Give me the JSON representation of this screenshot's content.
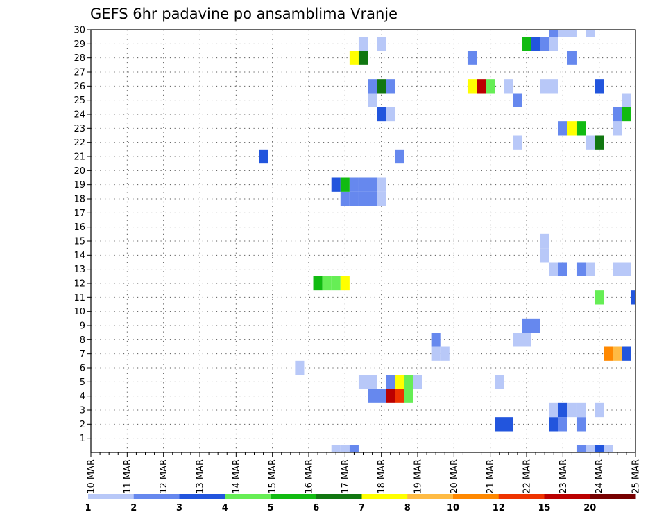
{
  "chart_data": {
    "type": "heatmap",
    "title": "GEFS 6hr padavine po ansamblima Vranje",
    "xlabel": "",
    "ylabel": "",
    "x_tick_labels": [
      "10 MAR",
      "11 MAR",
      "12 MAR",
      "13 MAR",
      "14 MAR",
      "15 MAR",
      "16 MAR",
      "17 MAR",
      "18 MAR",
      "19 MAR",
      "20 MAR",
      "21 MAR",
      "22 MAR",
      "23 MAR",
      "24 MAR",
      "25 MAR"
    ],
    "y_tick_labels": [
      "1",
      "2",
      "3",
      "4",
      "5",
      "6",
      "7",
      "8",
      "9",
      "10",
      "11",
      "12",
      "13",
      "14",
      "15",
      "16",
      "17",
      "18",
      "19",
      "20",
      "21",
      "22",
      "23",
      "24",
      "25",
      "26",
      "27",
      "28",
      "29",
      "30"
    ],
    "xlim_steps": [
      0,
      60
    ],
    "ylim_members": [
      0,
      30
    ],
    "grid": true,
    "legend": {
      "placement": "bottom",
      "thresholds": [
        "1",
        "2",
        "3",
        "4",
        "5",
        "6",
        "7",
        "8",
        "10",
        "12",
        "15",
        "20"
      ],
      "colors": [
        "#b8c8f8",
        "#6688ee",
        "#2255dd",
        "#66ee55",
        "#11bb11",
        "#117711",
        "#ffff00",
        "#ffbb44",
        "#ff8800",
        "#ee3300",
        "#bb0000",
        "#770000"
      ]
    },
    "step_hours": 6,
    "cells_note": "each cell: [time step index (6h, from 10 MAR 00z), ensemble member 0-30, color class 0-11]",
    "cells": [
      [
        27,
        0,
        0
      ],
      [
        28,
        0,
        0
      ],
      [
        29,
        0,
        1
      ],
      [
        54,
        0,
        1
      ],
      [
        55,
        0,
        0
      ],
      [
        56,
        0,
        2
      ],
      [
        57,
        0,
        0
      ],
      [
        45,
        2,
        2
      ],
      [
        46,
        2,
        2
      ],
      [
        51,
        2,
        2
      ],
      [
        52,
        2,
        1
      ],
      [
        54,
        2,
        1
      ],
      [
        51,
        3,
        0
      ],
      [
        52,
        3,
        2
      ],
      [
        53,
        3,
        0
      ],
      [
        54,
        3,
        0
      ],
      [
        56,
        3,
        0
      ],
      [
        31,
        4,
        1
      ],
      [
        32,
        4,
        1
      ],
      [
        33,
        4,
        10
      ],
      [
        34,
        4,
        9
      ],
      [
        35,
        4,
        3
      ],
      [
        30,
        5,
        0
      ],
      [
        31,
        5,
        0
      ],
      [
        33,
        5,
        1
      ],
      [
        34,
        5,
        6
      ],
      [
        35,
        5,
        3
      ],
      [
        36,
        5,
        0
      ],
      [
        45,
        5,
        0
      ],
      [
        23,
        6,
        0
      ],
      [
        38,
        7,
        0
      ],
      [
        39,
        7,
        0
      ],
      [
        57,
        7,
        8
      ],
      [
        58,
        7,
        7
      ],
      [
        59,
        7,
        2
      ],
      [
        38,
        8,
        1
      ],
      [
        47,
        8,
        0
      ],
      [
        48,
        8,
        0
      ],
      [
        48,
        9,
        1
      ],
      [
        49,
        9,
        1
      ],
      [
        56,
        11,
        3
      ],
      [
        60,
        11,
        2
      ],
      [
        25,
        12,
        4
      ],
      [
        26,
        12,
        3
      ],
      [
        27,
        12,
        3
      ],
      [
        28,
        12,
        6
      ],
      [
        51,
        13,
        0
      ],
      [
        52,
        13,
        1
      ],
      [
        54,
        13,
        1
      ],
      [
        55,
        13,
        0
      ],
      [
        58,
        13,
        0
      ],
      [
        59,
        13,
        0
      ],
      [
        50,
        14,
        0
      ],
      [
        50,
        15,
        0
      ],
      [
        28,
        18,
        1
      ],
      [
        29,
        18,
        1
      ],
      [
        30,
        18,
        1
      ],
      [
        31,
        18,
        1
      ],
      [
        32,
        18,
        0
      ],
      [
        27,
        19,
        2
      ],
      [
        28,
        19,
        4
      ],
      [
        29,
        19,
        1
      ],
      [
        30,
        19,
        1
      ],
      [
        31,
        19,
        1
      ],
      [
        32,
        19,
        0
      ],
      [
        19,
        21,
        2
      ],
      [
        34,
        21,
        1
      ],
      [
        47,
        22,
        0
      ],
      [
        55,
        22,
        0
      ],
      [
        56,
        22,
        5
      ],
      [
        52,
        23,
        1
      ],
      [
        53,
        23,
        6
      ],
      [
        54,
        23,
        4
      ],
      [
        58,
        23,
        0
      ],
      [
        32,
        24,
        2
      ],
      [
        33,
        24,
        0
      ],
      [
        58,
        24,
        1
      ],
      [
        59,
        24,
        4
      ],
      [
        31,
        25,
        0
      ],
      [
        47,
        25,
        1
      ],
      [
        59,
        25,
        0
      ],
      [
        31,
        26,
        1
      ],
      [
        32,
        26,
        5
      ],
      [
        33,
        26,
        1
      ],
      [
        42,
        26,
        6
      ],
      [
        43,
        26,
        10
      ],
      [
        44,
        26,
        3
      ],
      [
        46,
        26,
        0
      ],
      [
        50,
        26,
        0
      ],
      [
        51,
        26,
        0
      ],
      [
        56,
        26,
        2
      ],
      [
        29,
        28,
        6
      ],
      [
        30,
        28,
        5
      ],
      [
        42,
        28,
        1
      ],
      [
        53,
        28,
        1
      ],
      [
        30,
        29,
        0
      ],
      [
        32,
        29,
        0
      ],
      [
        48,
        29,
        4
      ],
      [
        49,
        29,
        2
      ],
      [
        50,
        29,
        1
      ],
      [
        51,
        29,
        0
      ],
      [
        51,
        30,
        1
      ],
      [
        52,
        30,
        0
      ],
      [
        53,
        30,
        0
      ],
      [
        55,
        30,
        0
      ]
    ]
  }
}
